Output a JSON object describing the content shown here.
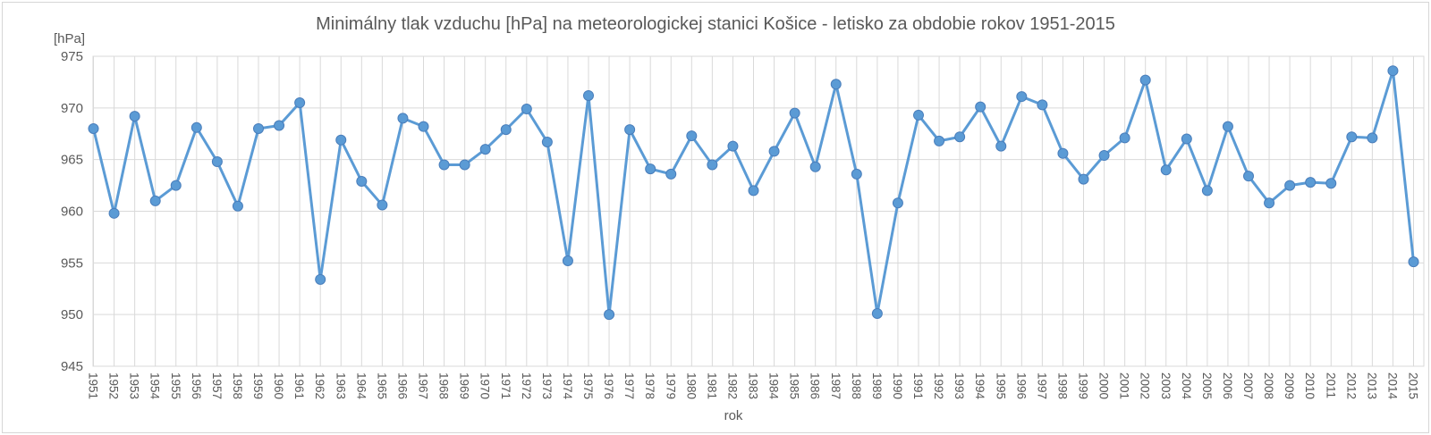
{
  "chart_data": {
    "type": "line",
    "title": "Minimálny tlak vzduchu [hPa] na meteorologickej stanici Košice - letisko za obdobie rokov 1951-2015",
    "xlabel": "rok",
    "ylabel": "[hPa]",
    "ylim": [
      945,
      975
    ],
    "y_ticks": [
      945,
      950,
      955,
      960,
      965,
      970,
      975
    ],
    "grid": "on",
    "legend": "none",
    "series_color": "#5b9bd5",
    "marker_edge_color": "#4a7ebb",
    "gridline_color": "#d9d9d9",
    "text_color": "#595959",
    "x": [
      1951,
      1952,
      1953,
      1954,
      1955,
      1956,
      1957,
      1958,
      1959,
      1960,
      1961,
      1962,
      1963,
      1964,
      1965,
      1966,
      1967,
      1968,
      1969,
      1970,
      1971,
      1972,
      1973,
      1974,
      1975,
      1976,
      1977,
      1978,
      1979,
      1980,
      1981,
      1982,
      1983,
      1984,
      1985,
      1986,
      1987,
      1988,
      1989,
      1990,
      1991,
      1992,
      1993,
      1994,
      1995,
      1996,
      1997,
      1998,
      1999,
      2000,
      2001,
      2002,
      2003,
      2004,
      2005,
      2006,
      2007,
      2008,
      2009,
      2010,
      2011,
      2012,
      2013,
      2014,
      2015
    ],
    "values": [
      968.0,
      959.8,
      969.2,
      961.0,
      962.5,
      968.1,
      964.8,
      960.5,
      968.0,
      968.3,
      970.5,
      953.4,
      966.9,
      962.9,
      960.6,
      969.0,
      968.2,
      964.5,
      964.5,
      966.0,
      967.9,
      969.9,
      966.7,
      955.2,
      971.2,
      950.0,
      967.9,
      964.1,
      963.6,
      967.3,
      964.5,
      966.3,
      962.0,
      965.8,
      969.5,
      964.3,
      972.3,
      963.6,
      950.1,
      960.8,
      969.3,
      966.8,
      967.2,
      970.1,
      966.3,
      971.1,
      970.3,
      965.6,
      963.1,
      965.4,
      967.1,
      972.7,
      964.0,
      967.0,
      962.0,
      968.2,
      963.4,
      960.8,
      962.5,
      962.8,
      962.7,
      967.2,
      967.1,
      973.6,
      955.1
    ]
  }
}
